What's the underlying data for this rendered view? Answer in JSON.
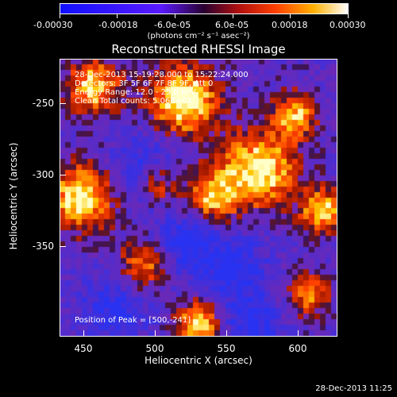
{
  "colorbar": {
    "ticks": [
      "-0.00030",
      "-0.00018",
      "-6.0e-05",
      "6.0e-05",
      "0.00018",
      "0.00030"
    ],
    "units": "(photons cm⁻² s⁻¹ asec⁻²)"
  },
  "title": "Reconstructed RHESSI Image",
  "annotations": {
    "time_range": "28-Dec-2013 15:19:28.000 to 15:22:24.000",
    "detectors": "Detectors: 3F 5F 6F 7F 8F 9F, Att 0",
    "energy": "Energy Range: 12.0 - 25.0 keV",
    "clean": "Clean    Total counts: 5.06E+03",
    "peak": "Position of Peak = [500,-241]"
  },
  "axes": {
    "xlabel": "Heliocentric X (arcsec)",
    "ylabel": "Heliocentric Y (arcsec)",
    "xticks": [
      "450",
      "500",
      "550",
      "600"
    ],
    "yticks": [
      "-250",
      "-300",
      "-350"
    ],
    "xrange": [
      433,
      627
    ],
    "yrange": [
      -397,
      -203
    ]
  },
  "footer": "28-Dec-2013 11:25"
}
